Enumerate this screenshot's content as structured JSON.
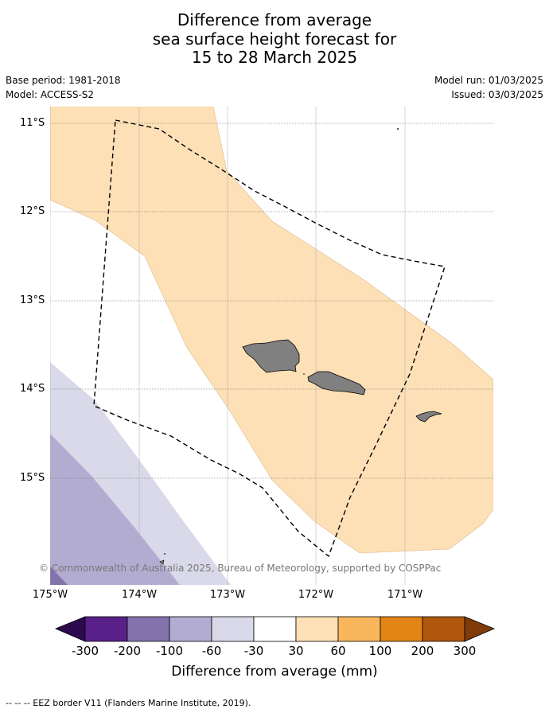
{
  "title": {
    "line1": "Difference from average",
    "line2": "sea surface height forecast for",
    "line3": "15 to 28 March 2025"
  },
  "meta": {
    "base_period": "Base period: 1981-2018",
    "model": "Model: ACCESS-S2",
    "model_run": "Model run: 01/03/2025",
    "issued": "Issued: 03/03/2025"
  },
  "map": {
    "lat_labels": [
      "11°S",
      "12°S",
      "13°S",
      "14°S",
      "15°S"
    ],
    "lon_labels": [
      "175°W",
      "174°W",
      "173°W",
      "172°W",
      "171°W"
    ],
    "copyright": "© Commonwealth of Australia 2025, Bureau of Meteorology, supported by COSPPac",
    "colors": {
      "anomaly_30_60": "#fde0b6",
      "anomaly_-60_-30": "#d9d9ea",
      "anomaly_-100_-60": "#b3acd1",
      "anomaly_-200_-100": "#8474ad",
      "land": "#808080"
    }
  },
  "colorbar": {
    "title": "Difference from average (mm)",
    "labels": [
      "-300",
      "-200",
      "-100",
      "-60",
      "-30",
      "30",
      "60",
      "100",
      "200",
      "300"
    ],
    "colors": [
      "#2d0a4e",
      "#59208a",
      "#8474ad",
      "#b3acd1",
      "#d9d9ea",
      "#ffffff",
      "#fde0b6",
      "#fab65c",
      "#e28516",
      "#b1570b",
      "#7f3b08"
    ]
  },
  "footnote": "--  --  -- EEZ border V11 (Flanders Marine Institute, 2019)."
}
